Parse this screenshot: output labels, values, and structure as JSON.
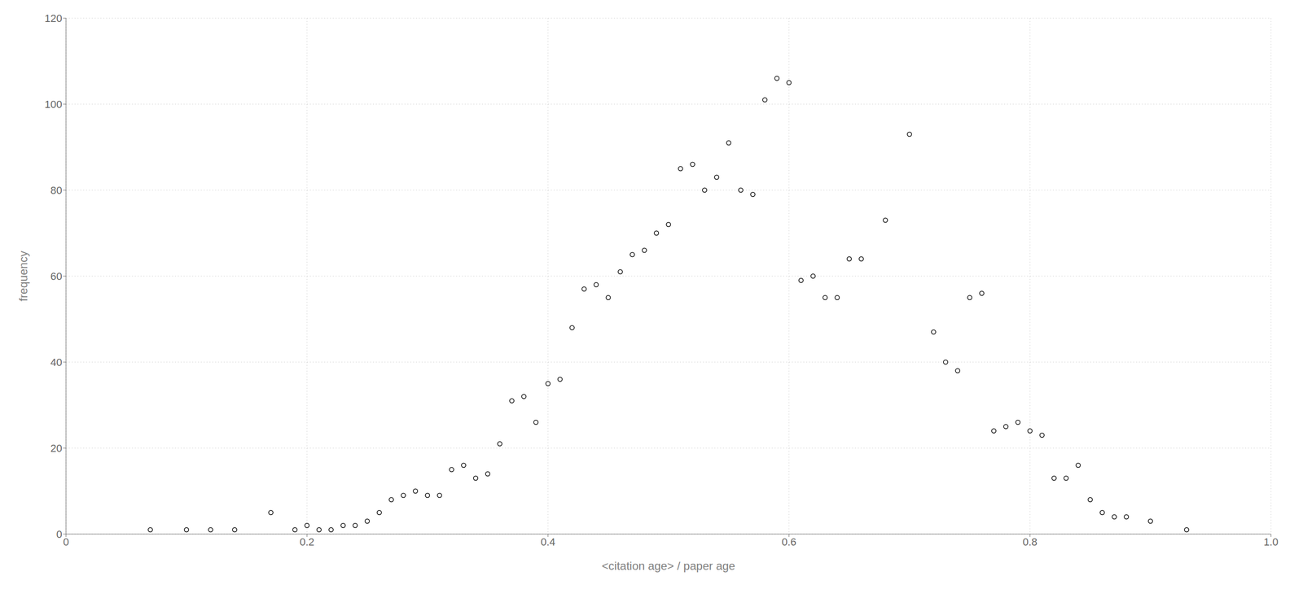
{
  "chart_data": {
    "type": "scatter",
    "xlabel": "<citation age> / paper age",
    "ylabel": "frequency",
    "x": [
      0.07,
      0.1,
      0.12,
      0.14,
      0.17,
      0.19,
      0.2,
      0.21,
      0.22,
      0.23,
      0.24,
      0.25,
      0.26,
      0.27,
      0.28,
      0.29,
      0.3,
      0.31,
      0.32,
      0.33,
      0.34,
      0.35,
      0.36,
      0.37,
      0.38,
      0.39,
      0.4,
      0.41,
      0.42,
      0.43,
      0.44,
      0.45,
      0.46,
      0.47,
      0.48,
      0.49,
      0.5,
      0.51,
      0.52,
      0.53,
      0.54,
      0.55,
      0.56,
      0.57,
      0.58,
      0.59,
      0.6,
      0.61,
      0.62,
      0.63,
      0.64,
      0.65,
      0.66,
      0.68,
      0.7,
      0.72,
      0.73,
      0.74,
      0.75,
      0.76,
      0.77,
      0.78,
      0.79,
      0.8,
      0.81,
      0.82,
      0.83,
      0.84,
      0.85,
      0.86,
      0.87,
      0.88,
      0.9,
      0.93
    ],
    "values": [
      1,
      1,
      1,
      1,
      5,
      1,
      2,
      1,
      1,
      2,
      2,
      3,
      5,
      8,
      9,
      10,
      9,
      9,
      15,
      16,
      13,
      14,
      21,
      31,
      32,
      26,
      35,
      36,
      48,
      57,
      58,
      55,
      61,
      65,
      66,
      70,
      72,
      85,
      86,
      80,
      83,
      91,
      80,
      79,
      101,
      106,
      105,
      59,
      60,
      55,
      55,
      64,
      64,
      73,
      93,
      47,
      40,
      38,
      55,
      56,
      24,
      25,
      26,
      24,
      23,
      13,
      13,
      16,
      8,
      5,
      4,
      4,
      3,
      1
    ],
    "xlim": [
      0,
      1.0
    ],
    "ylim": [
      0,
      120
    ],
    "xticks": [
      0,
      0.2,
      0.4,
      0.6,
      0.8,
      {
        "value": 1.0,
        "label": "1.0"
      }
    ],
    "yticks": [
      0,
      20,
      40,
      60,
      80,
      100,
      120
    ],
    "grid": true,
    "color": "black",
    "marker": "circle"
  }
}
